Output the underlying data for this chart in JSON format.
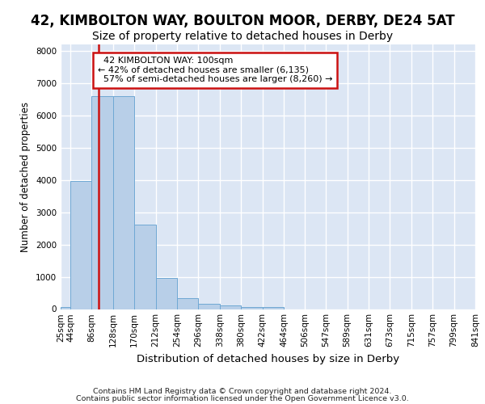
{
  "title1": "42, KIMBOLTON WAY, BOULTON MOOR, DERBY, DE24 5AT",
  "title2": "Size of property relative to detached houses in Derby",
  "xlabel": "Distribution of detached houses by size in Derby",
  "ylabel": "Number of detached properties",
  "footer_line1": "Contains HM Land Registry data © Crown copyright and database right 2024.",
  "footer_line2": "Contains public sector information licensed under the Open Government Licence v3.0.",
  "bar_edges": [
    25,
    44,
    86,
    128,
    170,
    212,
    254,
    296,
    338,
    380,
    422,
    464,
    506,
    547,
    589,
    631,
    673,
    715,
    757,
    799,
    841
  ],
  "bar_heights": [
    60,
    3980,
    6600,
    6600,
    2620,
    960,
    340,
    160,
    120,
    75,
    75,
    0,
    0,
    0,
    0,
    0,
    0,
    0,
    0,
    0
  ],
  "bar_color": "#b8cfe8",
  "bar_edge_color": "#6fa8d4",
  "property_size": 100,
  "property_label": "42 KIMBOLTON WAY: 100sqm",
  "smaller_pct": 42,
  "smaller_count": "6,135",
  "larger_pct": 57,
  "larger_count": "8,260",
  "line_color": "#cc1111",
  "annotation_box_edge": "#cc1111",
  "ylim": [
    0,
    8200
  ],
  "yticks": [
    0,
    1000,
    2000,
    3000,
    4000,
    5000,
    6000,
    7000,
    8000
  ],
  "background_color": "#dce6f4",
  "grid_color": "#ffffff",
  "tick_label_fontsize": 7.5,
  "title1_fontsize": 12,
  "title2_fontsize": 10,
  "ylabel_fontsize": 8.5,
  "xlabel_fontsize": 9.5
}
